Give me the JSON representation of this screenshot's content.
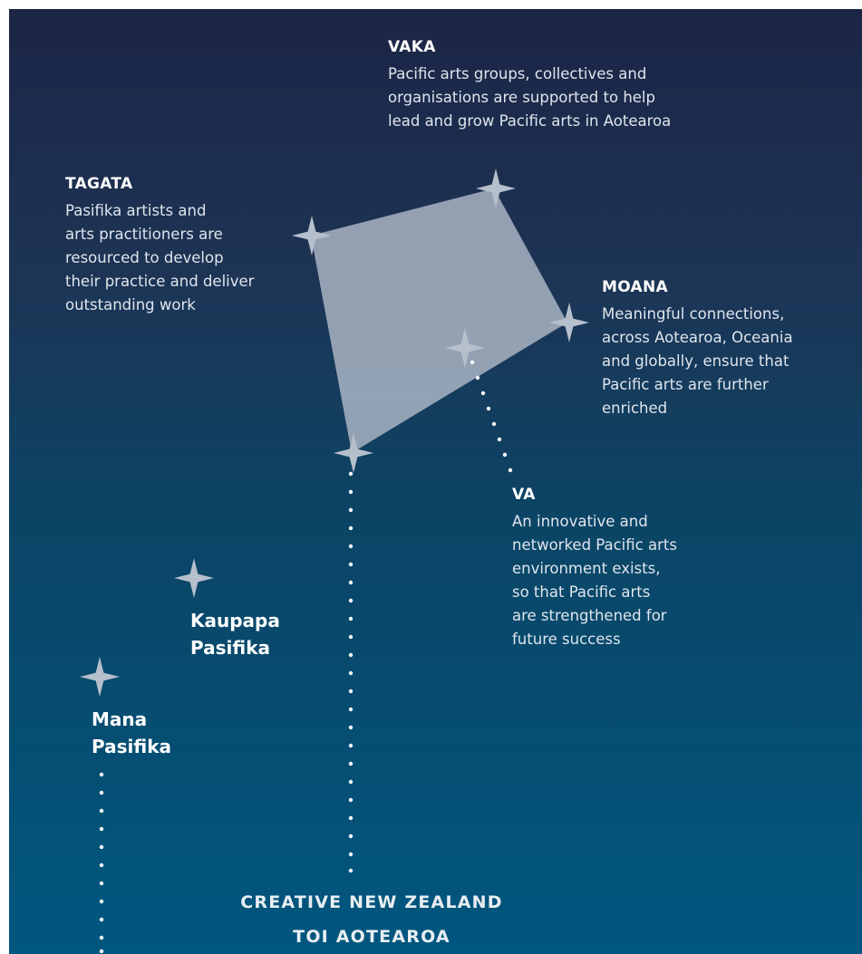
{
  "sections": {
    "vaka": {
      "heading": "VAKA",
      "lines": [
        "Pacific arts groups, collectives and",
        "organisations are supported to help",
        "lead and grow Pacific arts in Aotearoa"
      ]
    },
    "tagata": {
      "heading": "TAGATA",
      "lines": [
        "Pasifika artists and",
        "arts practitioners are",
        "resourced to develop",
        "their practice and deliver",
        "outstanding work"
      ]
    },
    "moana": {
      "heading": "MOANA",
      "lines": [
        "Meaningful connections,",
        "across Aotearoa, Oceania",
        "and globally, ensure that",
        "Pacific arts are further",
        "enriched"
      ]
    },
    "va": {
      "heading": "VA",
      "lines": [
        "An innovative and",
        "networked Pacific arts",
        "environment exists,",
        "so that Pacific arts",
        "are strengthened for",
        "future success"
      ]
    }
  },
  "stages": {
    "kaupapa": [
      "Kaupapa",
      "Pasifika"
    ],
    "mana": [
      "Mana",
      "Pasifika"
    ]
  },
  "footer": [
    "CREATIVE NEW ZEALAND",
    "TOI AOTEAROA"
  ],
  "colors": {
    "background_top": "#1c2546",
    "background_bottom": "#00577f",
    "kite_fill": "#a9b4c3",
    "star": "#b6bfcc",
    "dots": "#ffffff"
  }
}
